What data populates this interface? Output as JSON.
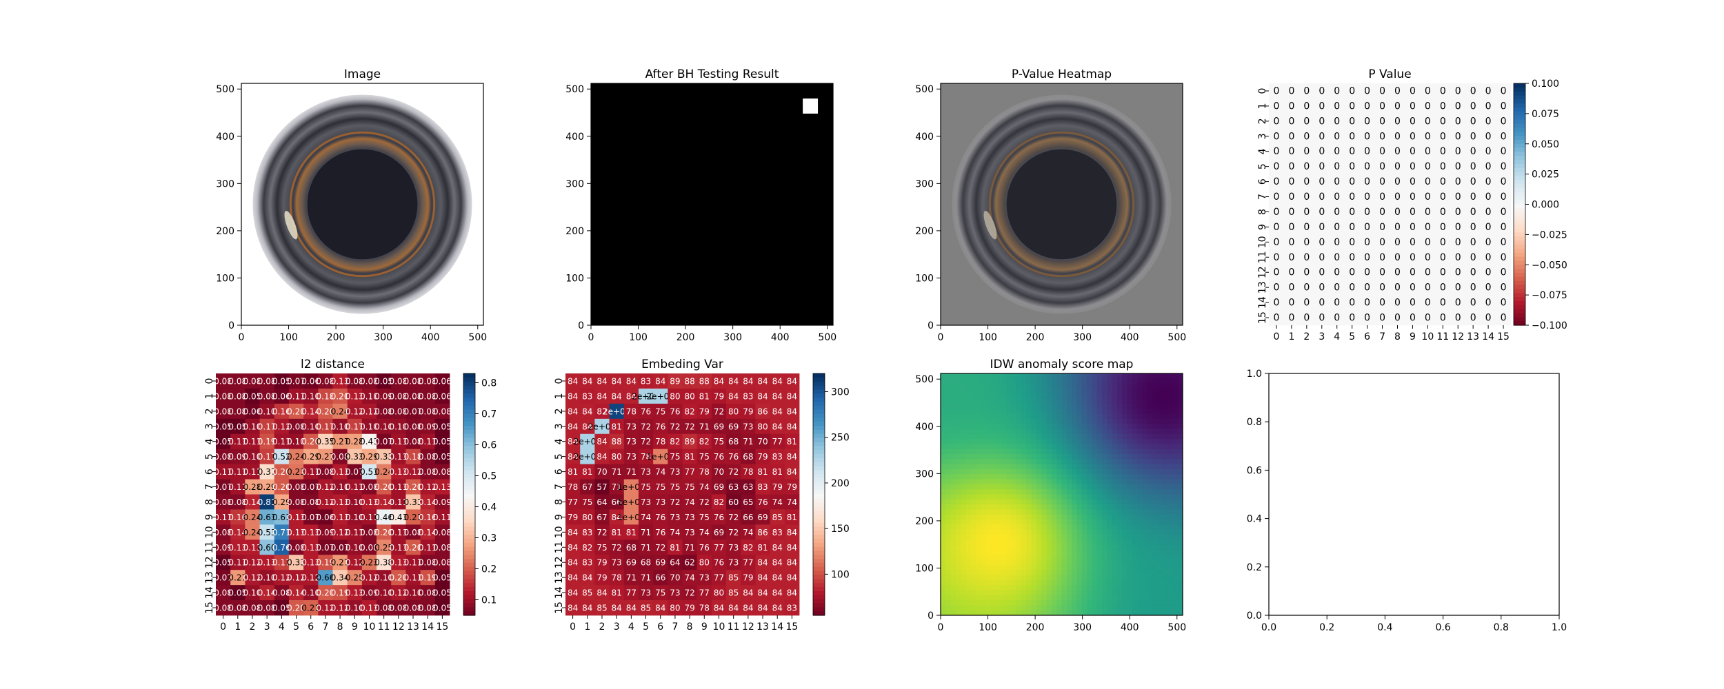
{
  "chart_data": [
    {
      "type": "image",
      "title": "Image",
      "xlim": [
        0,
        512
      ],
      "ylim": [
        512,
        0
      ],
      "xticks": [
        0,
        100,
        200,
        300,
        400,
        500
      ],
      "yticks": [
        0,
        100,
        200,
        300,
        400,
        500
      ],
      "content": "circular-part-photo"
    },
    {
      "type": "image",
      "title": "After BH Testing Result",
      "xlim": [
        0,
        512
      ],
      "ylim": [
        512,
        0
      ],
      "xticks": [
        0,
        100,
        200,
        300,
        400,
        500
      ],
      "yticks": [
        0,
        100,
        200,
        300,
        400,
        500
      ],
      "background": "#000000",
      "detections": [
        {
          "x0": 448,
          "x1": 480,
          "y0": 32,
          "y1": 64,
          "color": "#ffffff"
        }
      ]
    },
    {
      "type": "image",
      "title": "P-Value Heatmap",
      "xlim": [
        0,
        512
      ],
      "ylim": [
        512,
        0
      ],
      "xticks": [
        0,
        100,
        200,
        300,
        400,
        500
      ],
      "yticks": [
        0,
        100,
        200,
        300,
        400,
        500
      ],
      "content": "circular-part-photo-overlay",
      "background": "#808080"
    },
    {
      "type": "heatmap",
      "title": "P Value",
      "rows": 16,
      "cols": 16,
      "ticks": [
        "0",
        "1",
        "2",
        "3",
        "4",
        "5",
        "6",
        "7",
        "8",
        "9",
        "10",
        "11",
        "12",
        "13",
        "14",
        "15"
      ],
      "annotation": "0",
      "cell_value": 0,
      "colormap": "RdBu",
      "colorbar": {
        "min": -0.1,
        "max": 0.1,
        "ticks": [
          "0.100",
          "0.075",
          "0.050",
          "0.025",
          "0.000",
          "−0.025",
          "−0.050",
          "−0.075",
          "−0.100"
        ]
      }
    },
    {
      "type": "heatmap",
      "title": "l2 distance",
      "rows": 16,
      "cols": 16,
      "ticks": [
        "0",
        "1",
        "2",
        "3",
        "4",
        "5",
        "6",
        "7",
        "8",
        "9",
        "10",
        "11",
        "12",
        "13",
        "14",
        "15"
      ],
      "colormap": "RdBu",
      "colorbar": {
        "min": 0.05,
        "max": 0.83,
        "ticks": [
          "0.8",
          "0.7",
          "0.6",
          "0.5",
          "0.4",
          "0.3",
          "0.2",
          "0.1"
        ]
      },
      "values": [
        [
          0.08,
          0.08,
          0.08,
          0.08,
          0.05,
          0.07,
          0.06,
          0.08,
          0.13,
          0.08,
          0.08,
          0.05,
          0.08,
          0.08,
          0.08,
          0.06
        ],
        [
          0.08,
          0.08,
          0.05,
          0.08,
          0.06,
          0.11,
          0.1,
          0.18,
          0.2,
          0.13,
          0.1,
          0.09,
          0.08,
          0.08,
          0.08,
          0.06
        ],
        [
          0.08,
          0.08,
          0.06,
          0.1,
          0.16,
          0.2,
          0.14,
          0.2,
          0.24,
          0.12,
          0.12,
          0.08,
          0.08,
          0.07,
          0.08,
          0.08
        ],
        [
          0.05,
          0.05,
          0.1,
          0.17,
          0.12,
          0.08,
          0.1,
          0.17,
          0.1,
          0.17,
          0.1,
          0.1,
          0.1,
          0.08,
          0.09,
          0.05
        ],
        [
          0.05,
          0.11,
          0.11,
          0.19,
          0.11,
          0.1,
          0.2,
          0.35,
          0.27,
          0.28,
          0.43,
          0.07,
          0.11,
          0.08,
          0.11,
          0.05
        ],
        [
          0.08,
          0.09,
          0.1,
          0.17,
          0.52,
          0.24,
          0.29,
          0.27,
          0.08,
          0.33,
          0.29,
          0.33,
          0.11,
          0.18,
          0.08,
          0.05
        ],
        [
          0.11,
          0.11,
          0.11,
          0.37,
          0.2,
          0.23,
          0.11,
          0.08,
          0.13,
          0.07,
          0.51,
          0.24,
          0.13,
          0.12,
          0.08,
          0.08
        ],
        [
          0.07,
          0.11,
          0.28,
          0.29,
          0.2,
          0.08,
          0.07,
          0.12,
          0.1,
          0.11,
          0.08,
          0.2,
          0.11,
          0.2,
          0.12,
          0.13
        ],
        [
          0.08,
          0.08,
          0.14,
          0.81,
          0.29,
          0.08,
          0.08,
          0.12,
          0.13,
          0.1,
          0.13,
          0.14,
          0.11,
          0.33,
          0.14,
          0.09
        ],
        [
          0.11,
          0.16,
          0.24,
          0.63,
          0.61,
          0.13,
          0.07,
          0.06,
          0.13,
          0.1,
          0.11,
          0.46,
          0.41,
          0.21,
          0.16,
          0.11
        ],
        [
          0.08,
          0.14,
          0.24,
          0.53,
          0.71,
          0.13,
          0.13,
          0.09,
          0.12,
          0.11,
          0.08,
          0.2,
          0.11,
          0.08,
          0.14,
          0.08
        ],
        [
          0.09,
          0.13,
          0.13,
          0.6,
          0.76,
          0.08,
          0.13,
          0.07,
          0.07,
          0.1,
          0.08,
          0.25,
          0.11,
          0.2,
          0.11,
          0.08
        ],
        [
          0.05,
          0.11,
          0.12,
          0.13,
          0.17,
          0.33,
          0.13,
          0.19,
          0.27,
          0.12,
          0.23,
          0.38,
          0.13,
          0.11,
          0.08,
          0.08
        ],
        [
          0.07,
          0.27,
          0.12,
          0.1,
          0.12,
          0.12,
          0.12,
          0.66,
          0.34,
          0.25,
          0.12,
          0.1,
          0.2,
          0.11,
          0.19,
          0.05
        ],
        [
          0.08,
          0.05,
          0.1,
          0.14,
          0.08,
          0.14,
          0.1,
          0.2,
          0.19,
          0.13,
          0.09,
          0.1,
          0.12,
          0.1,
          0.08,
          0.05
        ],
        [
          0.08,
          0.08,
          0.08,
          0.08,
          0.05,
          0.2,
          0.21,
          0.12,
          0.12,
          0.1,
          0.13,
          0.08,
          0.08,
          0.08,
          0.08,
          0.05
        ]
      ]
    },
    {
      "type": "heatmap",
      "title": "Embeding Var",
      "rows": 16,
      "cols": 16,
      "ticks": [
        "0",
        "1",
        "2",
        "3",
        "4",
        "5",
        "6",
        "7",
        "8",
        "9",
        "10",
        "11",
        "12",
        "13",
        "14",
        "15"
      ],
      "colormap": "RdBu",
      "colorbar": {
        "min": 55,
        "max": 320,
        "ticks": [
          "300",
          "250",
          "200",
          "150",
          "100"
        ]
      },
      "values": [
        [
          84,
          84,
          84,
          84,
          84,
          83,
          84,
          89,
          88,
          88,
          84,
          84,
          84,
          84,
          84,
          84
        ],
        [
          84,
          83,
          84,
          84,
          84,
          230,
          230,
          80,
          80,
          81,
          79,
          84,
          83,
          84,
          84,
          84
        ],
        [
          84,
          84,
          82,
          310,
          78,
          76,
          75,
          76,
          82,
          79,
          72,
          80,
          79,
          86,
          84,
          84
        ],
        [
          84,
          84,
          230,
          81,
          73,
          72,
          76,
          72,
          72,
          71,
          69,
          69,
          73,
          80,
          84,
          84
        ],
        [
          84,
          230,
          84,
          88,
          73,
          72,
          78,
          82,
          89,
          82,
          75,
          68,
          71,
          70,
          77,
          81
        ],
        [
          84,
          230,
          84,
          80,
          73,
          78,
          120,
          75,
          81,
          75,
          76,
          76,
          68,
          79,
          83,
          84
        ],
        [
          81,
          81,
          70,
          71,
          71,
          73,
          74,
          73,
          77,
          78,
          70,
          72,
          78,
          81,
          81,
          84
        ],
        [
          78,
          67,
          57,
          71,
          120,
          75,
          75,
          75,
          75,
          74,
          69,
          63,
          63,
          83,
          79,
          79
        ],
        [
          77,
          75,
          64,
          66,
          120,
          73,
          73,
          72,
          74,
          72,
          82,
          60,
          65,
          76,
          74,
          74
        ],
        [
          79,
          80,
          67,
          84,
          120,
          74,
          76,
          73,
          73,
          75,
          76,
          72,
          66,
          69,
          85,
          81
        ],
        [
          84,
          83,
          72,
          81,
          81,
          71,
          76,
          74,
          73,
          74,
          69,
          72,
          74,
          86,
          83,
          84
        ],
        [
          84,
          82,
          75,
          72,
          68,
          71,
          72,
          81,
          71,
          76,
          77,
          73,
          82,
          81,
          84,
          84
        ],
        [
          84,
          83,
          79,
          73,
          69,
          68,
          69,
          64,
          62,
          80,
          76,
          73,
          77,
          84,
          84,
          84
        ],
        [
          84,
          84,
          79,
          78,
          71,
          71,
          66,
          70,
          74,
          73,
          77,
          85,
          79,
          84,
          84,
          84
        ],
        [
          84,
          85,
          84,
          81,
          77,
          73,
          75,
          73,
          72,
          77,
          80,
          85,
          84,
          84,
          84,
          84
        ],
        [
          84,
          84,
          85,
          84,
          84,
          85,
          84,
          80,
          79,
          78,
          84,
          84,
          84,
          84,
          84,
          83
        ]
      ]
    },
    {
      "type": "heatmap",
      "title": "IDW anomaly score map",
      "xlim": [
        0,
        512
      ],
      "ylim": [
        512,
        0
      ],
      "xticks": [
        0,
        100,
        200,
        300,
        400,
        500
      ],
      "yticks": [
        0,
        100,
        200,
        300,
        400,
        500
      ],
      "colormap": "viridis",
      "sources": [
        {
          "x": 120,
          "y": 360,
          "value": 1.0
        },
        {
          "x": 470,
          "y": 50,
          "value": 0.0
        },
        {
          "x": 512,
          "y": 512,
          "value": 0.55
        },
        {
          "x": 0,
          "y": 0,
          "value": 0.62
        }
      ]
    },
    {
      "type": "empty",
      "title": "",
      "xlim": [
        0,
        1
      ],
      "ylim": [
        0,
        1
      ],
      "xticks": [
        "0.0",
        "0.2",
        "0.4",
        "0.6",
        "0.8",
        "1.0"
      ],
      "yticks": [
        "0.0",
        "0.2",
        "0.4",
        "0.6",
        "0.8",
        "1.0"
      ]
    }
  ]
}
